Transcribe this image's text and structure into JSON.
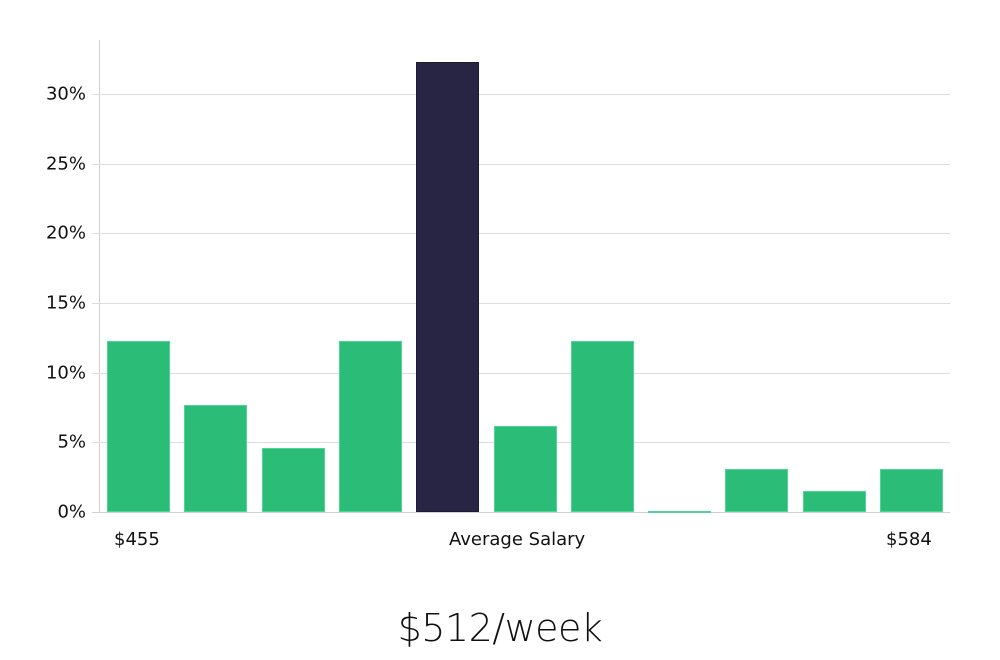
{
  "chart_data": {
    "type": "bar",
    "title": "",
    "xlabel": "Average Salary",
    "ylabel": "",
    "ylim": [
      0,
      34
    ],
    "yticks": [
      "0%",
      "5%",
      "10%",
      "15%",
      "20%",
      "25%",
      "30%"
    ],
    "ytick_values": [
      0,
      5,
      10,
      15,
      20,
      25,
      30
    ],
    "grid": true,
    "categories": [
      "$455",
      "",
      "",
      "",
      "Average Salary",
      "",
      "",
      "",
      "",
      "",
      "$584"
    ],
    "values": [
      12.3,
      7.7,
      4.6,
      12.3,
      32.3,
      6.2,
      12.3,
      0.1,
      3.1,
      1.5,
      3.1
    ],
    "highlight_index": 4,
    "colors": {
      "bar": "#2bbd77",
      "highlight": "#272444",
      "grid": "#dcdcdc",
      "axis": "#d0d0d0"
    },
    "x_labels": {
      "left": "$455",
      "center": "Average Salary",
      "right": "$584"
    }
  },
  "summary": {
    "value": "$512/week"
  }
}
